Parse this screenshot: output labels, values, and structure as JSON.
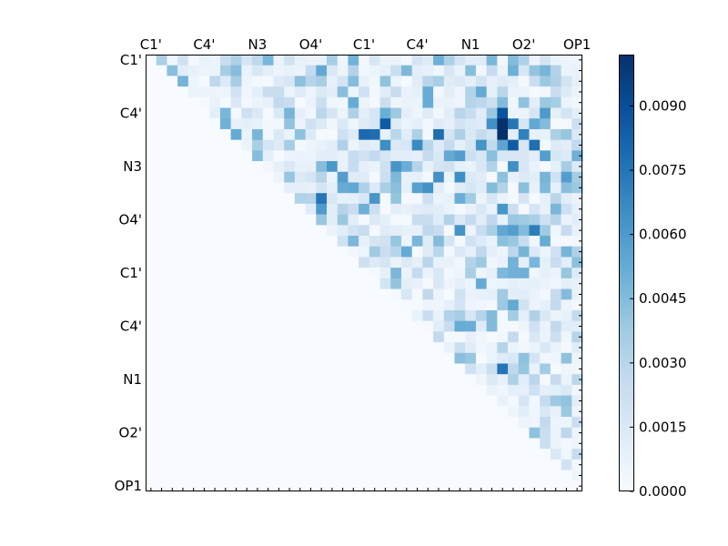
{
  "chart_data": {
    "type": "heatmap",
    "title": "",
    "xlabel": "",
    "ylabel": "",
    "x_tick_labels": [
      "C1'",
      "C4'",
      "N3",
      "O4'",
      "C1'",
      "C4'",
      "N1",
      "O2'",
      "OP1"
    ],
    "y_tick_labels": [
      "C1'",
      "C4'",
      "N3",
      "O4'",
      "C1'",
      "C4'",
      "N1",
      "O2'",
      "OP1"
    ],
    "x_axis_position": "top",
    "matrix_size": 41,
    "upper_triangular": true,
    "colormap": "Blues",
    "colorbar": {
      "position": "right",
      "vmin": 0.0,
      "vmax": 0.0102,
      "ticks": [
        0.0,
        0.0015,
        0.003,
        0.0045,
        0.006,
        0.0075,
        0.009
      ],
      "tick_labels": [
        "0.0000",
        "0.0015",
        "0.0030",
        "0.0045",
        "0.0060",
        "0.0075",
        "0.0090"
      ]
    },
    "sample_cells": [
      {
        "row": 12,
        "col": 12,
        "value": 0.0097
      },
      {
        "row": 6,
        "col": 33,
        "value": 0.0102
      },
      {
        "row": 7,
        "col": 33,
        "value": 0.0102
      },
      {
        "row": 5,
        "col": 33,
        "value": 0.0088
      },
      {
        "row": 8,
        "col": 34,
        "value": 0.0085
      },
      {
        "row": 6,
        "col": 22,
        "value": 0.0085
      },
      {
        "row": 7,
        "col": 21,
        "value": 0.0078
      },
      {
        "row": 7,
        "col": 27,
        "value": 0.0078
      },
      {
        "row": 13,
        "col": 16,
        "value": 0.0075
      },
      {
        "row": 20,
        "col": 20,
        "value": 0.0065
      },
      {
        "row": 29,
        "col": 33,
        "value": 0.0075
      },
      {
        "row": 16,
        "col": 36,
        "value": 0.0072
      }
    ],
    "grid": false
  }
}
